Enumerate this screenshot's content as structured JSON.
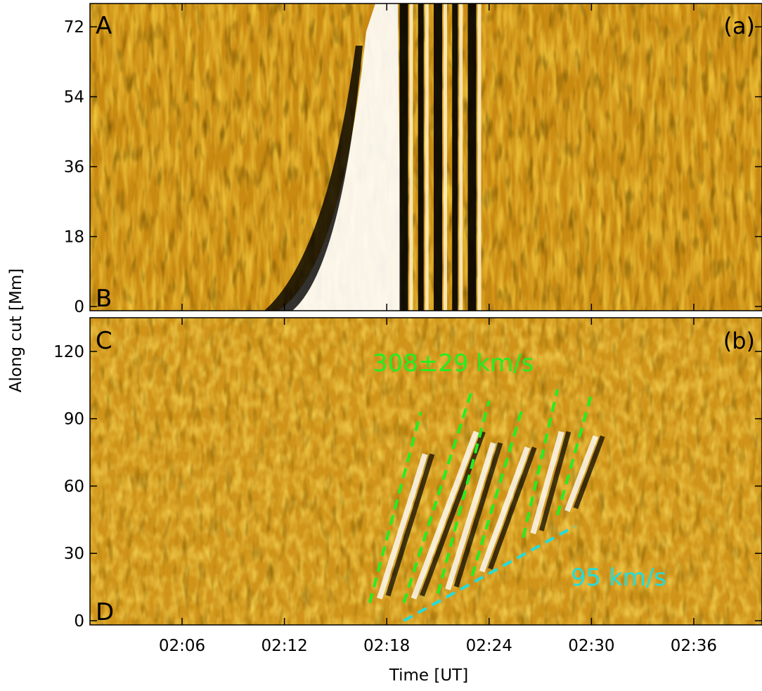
{
  "chart_data": [
    {
      "type": "heatmap",
      "panel_label": "(a)",
      "corner_labels": {
        "top": "A",
        "bottom": "B"
      },
      "ylim": [
        0,
        78
      ],
      "yticks": [
        0,
        18,
        36,
        54,
        72
      ],
      "x_ticks": [
        "02:06",
        "02:12",
        "02:18",
        "02:24",
        "02:30",
        "02:36"
      ],
      "colormap": [
        "#000000",
        "#b06a00",
        "#e8a300",
        "#ffd98a",
        "#ffffff"
      ],
      "features": {
        "bright_front_onset": "02:17",
        "dark_stripe_times": [
          "02:19",
          "02:20",
          "02:21",
          "02:22",
          "02:23"
        ]
      }
    },
    {
      "type": "heatmap",
      "panel_label": "(b)",
      "corner_labels": {
        "top": "C",
        "bottom": "D"
      },
      "ylim": [
        0,
        135
      ],
      "yticks": [
        0,
        30,
        60,
        90,
        120
      ],
      "x_ticks": [
        "02:06",
        "02:12",
        "02:18",
        "02:24",
        "02:30",
        "02:36"
      ],
      "colormap": [
        "#000000",
        "#b06a00",
        "#e8a300",
        "#ffd98a",
        "#ffffff"
      ],
      "annotations": [
        {
          "text": "308±29 km/s",
          "color": "#22ee22"
        },
        {
          "text": "95 km/s",
          "color": "#22dddd"
        }
      ],
      "fast_fronts_color": "#22ee22",
      "fast_fronts": [
        {
          "t0": "02:17",
          "y0": 8,
          "t1": "02:20",
          "y1": 93
        },
        {
          "t0": "02:19",
          "y0": 8,
          "t1": "02:23",
          "y1": 103
        },
        {
          "t0": "02:21",
          "y0": 12,
          "t1": "02:24",
          "y1": 98
        },
        {
          "t0": "02:23",
          "y0": 20,
          "t1": "02:26",
          "y1": 96
        },
        {
          "t0": "02:26",
          "y0": 37,
          "t1": "02:28",
          "y1": 103
        },
        {
          "t0": "02:28",
          "y0": 47,
          "t1": "02:30",
          "y1": 101
        }
      ],
      "slow_front_color": "#22dddd",
      "slow_front": {
        "t0": "02:19",
        "y0": 0,
        "t1": "02:29",
        "y1": 42
      }
    }
  ],
  "axes": {
    "xlabel": "Time [UT]",
    "ylabel": "Along cut [Mm]"
  }
}
